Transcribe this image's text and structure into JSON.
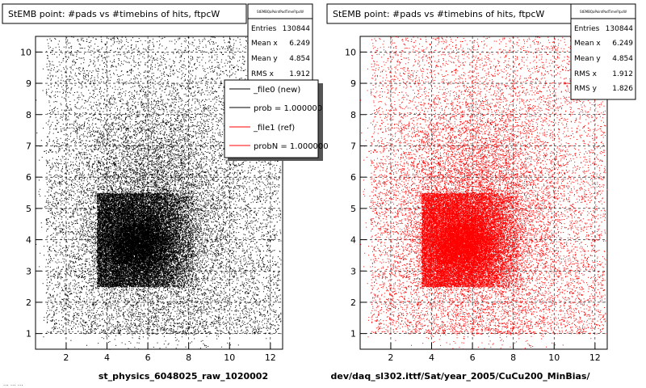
{
  "charts": [
    {
      "id": "left",
      "title": "StEMB point: #pads vs #timebins of hits, ftpcW",
      "stats": {
        "name": "StEMBQaPointPadTimeFtpcW",
        "rows": [
          {
            "label": "Entries",
            "value": "130844"
          },
          {
            "label": "Mean x",
            "value": "6.249"
          },
          {
            "label": "Mean y",
            "value": "4.854"
          },
          {
            "label": "RMS x",
            "value": "1.912"
          }
        ]
      },
      "legend": {
        "entries": [
          {
            "label": "_file0 (new)",
            "color": "#000000"
          },
          {
            "label": "prob = 1.000000",
            "color": "#000000"
          },
          {
            "label": "_file1 (ref)",
            "color": "#ff0000"
          },
          {
            "label": "probN = 1.000000",
            "color": "#ff0000"
          }
        ]
      },
      "xlabel": "st_physics_6048025_raw_1020002",
      "point_color": "#000000"
    },
    {
      "id": "right",
      "title": "StEMB point: #pads vs #timebins of hits, ftpcW",
      "stats": {
        "name": "StEMBQaPointPadTimeFtpcW",
        "rows": [
          {
            "label": "Entries",
            "value": "130844"
          },
          {
            "label": "Mean x",
            "value": "6.249"
          },
          {
            "label": "Mean y",
            "value": "4.854"
          },
          {
            "label": "RMS x",
            "value": "1.912"
          },
          {
            "label": "RMS y",
            "value": "1.826"
          }
        ]
      },
      "xlabel": "dev/daq_sl302.ittf/Sat/year_2005/CuCu200_MinBias/",
      "point_color": "#ff0000"
    }
  ],
  "footer_text": "... ... ...",
  "chart_data": [
    {
      "type": "scatter",
      "title": "StEMB point: #pads vs #timebins of hits, ftpcW",
      "xlabel": "st_physics_6048025_raw_1020002",
      "ylabel": "",
      "xlim": [
        0.5,
        12.6
      ],
      "ylim": [
        0.5,
        10.5
      ],
      "x_ticks": [
        2,
        4,
        6,
        8,
        10,
        12
      ],
      "y_ticks": [
        1,
        2,
        3,
        4,
        5,
        6,
        7,
        8,
        9,
        10
      ],
      "grid": true,
      "entries": 130844,
      "mean_x": 6.249,
      "mean_y": 4.854,
      "rms_x": 1.912,
      "dense_region": {
        "x": [
          3.5,
          8.5
        ],
        "y": [
          2.5,
          5.5
        ]
      }
    },
    {
      "type": "scatter",
      "title": "StEMB point: #pads vs #timebins of hits, ftpcW",
      "xlabel": "dev/daq_sl302.ittf/Sat/year_2005/CuCu200_MinBias/",
      "ylabel": "",
      "xlim": [
        0.5,
        12.6
      ],
      "ylim": [
        0.5,
        10.5
      ],
      "x_ticks": [
        2,
        4,
        6,
        8,
        10,
        12
      ],
      "y_ticks": [
        1,
        2,
        3,
        4,
        5,
        6,
        7,
        8,
        9,
        10
      ],
      "grid": true,
      "entries": 130844,
      "mean_x": 6.249,
      "mean_y": 4.854,
      "rms_x": 1.912,
      "rms_y": 1.826,
      "dense_region": {
        "x": [
          3.5,
          8.5
        ],
        "y": [
          2.5,
          5.5
        ]
      }
    }
  ]
}
